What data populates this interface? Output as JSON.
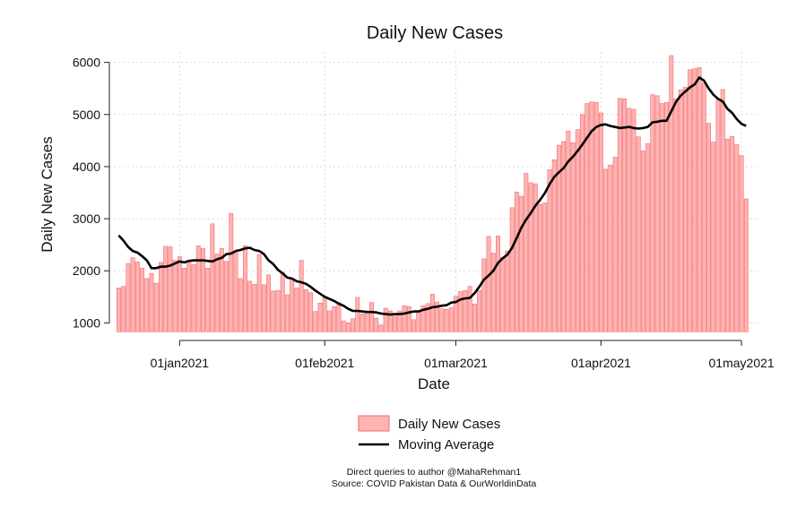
{
  "colors": {
    "bar_fill": "#ffb3b3",
    "bar_stroke": "#f06b6b",
    "line": "#000000",
    "grid": "#d9d9d9"
  },
  "notes": {
    "line1": "Direct queries to author @MahaRehman1",
    "line2": "Source: COVID Pakistan Data & OurWorldinData"
  },
  "chart_data": {
    "type": "bar",
    "title": "Daily New Cases",
    "xlabel": "Date",
    "ylabel": "Daily New Cases",
    "ylim": [
      800,
      6200
    ],
    "yticks": [
      1000,
      2000,
      3000,
      4000,
      5000,
      6000
    ],
    "grid": true,
    "legend_position": "bottom",
    "x_start_date": "2020-12-19",
    "x_end_date": "2021-05-02",
    "x_range": [
      "2020-12-17",
      "2021-05-05"
    ],
    "xticks": [
      {
        "date": "2021-01-01",
        "label": "01jan2021"
      },
      {
        "date": "2021-02-01",
        "label": "01feb2021"
      },
      {
        "date": "2021-03-01",
        "label": "01mar2021"
      },
      {
        "date": "2021-04-01",
        "label": "01apr2021"
      },
      {
        "date": "2021-05-01",
        "label": "01may2021"
      }
    ],
    "series": [
      {
        "name": "Daily New Cases",
        "type": "bar",
        "values": [
          1670,
          1700,
          2140,
          2250,
          2170,
          2050,
          1850,
          1950,
          1760,
          2160,
          2470,
          2460,
          2200,
          2270,
          2050,
          2200,
          2120,
          2480,
          2430,
          2050,
          2900,
          2320,
          2430,
          2180,
          3100,
          2350,
          1850,
          2480,
          1800,
          1740,
          2310,
          1730,
          1920,
          1610,
          1620,
          1970,
          1540,
          1840,
          1670,
          2200,
          1640,
          1580,
          1220,
          1380,
          1480,
          1230,
          1310,
          1390,
          1040,
          1000,
          1080,
          1490,
          1170,
          1200,
          1390,
          1090,
          960,
          1280,
          1230,
          1170,
          1230,
          1330,
          1310,
          1060,
          1230,
          1330,
          1370,
          1550,
          1400,
          1270,
          1260,
          1290,
          1510,
          1600,
          1620,
          1700,
          1360,
          1620,
          2230,
          2660,
          2340,
          2670,
          2260,
          2380,
          3210,
          3510,
          3430,
          3870,
          3690,
          3670,
          3270,
          3300,
          3940,
          4130,
          4410,
          4480,
          4680,
          4460,
          4710,
          5000,
          5210,
          5240,
          5230,
          5030,
          3950,
          4030,
          4180,
          5310,
          5300,
          5120,
          5100,
          4570,
          4300,
          4440,
          5380,
          5360,
          5210,
          5230,
          6130,
          5300,
          5470,
          5520,
          5860,
          5880,
          5900,
          5600,
          4830,
          4470,
          5290,
          5480,
          4530,
          4580,
          4420,
          4210,
          3380
        ]
      },
      {
        "name": "Moving Average",
        "type": "line",
        "values": [
          2680,
          2580,
          2460,
          2380,
          2350,
          2280,
          2200,
          2050,
          2050,
          2080,
          2080,
          2100,
          2140,
          2180,
          2160,
          2190,
          2200,
          2200,
          2200,
          2190,
          2180,
          2220,
          2250,
          2320,
          2330,
          2380,
          2400,
          2430,
          2440,
          2400,
          2380,
          2320,
          2200,
          2130,
          2020,
          1950,
          1870,
          1850,
          1800,
          1780,
          1750,
          1690,
          1620,
          1560,
          1500,
          1460,
          1420,
          1370,
          1330,
          1270,
          1230,
          1230,
          1220,
          1210,
          1210,
          1200,
          1180,
          1170,
          1160,
          1170,
          1170,
          1180,
          1200,
          1220,
          1220,
          1250,
          1270,
          1300,
          1310,
          1330,
          1340,
          1390,
          1400,
          1450,
          1470,
          1480,
          1570,
          1690,
          1830,
          1910,
          2000,
          2150,
          2240,
          2310,
          2440,
          2630,
          2830,
          2980,
          3110,
          3250,
          3360,
          3490,
          3660,
          3800,
          3890,
          3970,
          4100,
          4190,
          4300,
          4420,
          4550,
          4680,
          4760,
          4800,
          4810,
          4780,
          4760,
          4740,
          4750,
          4760,
          4740,
          4730,
          4740,
          4760,
          4850,
          4860,
          4880,
          4880,
          5060,
          5240,
          5360,
          5440,
          5520,
          5580,
          5710,
          5650,
          5500,
          5380,
          5300,
          5250,
          5110,
          5030,
          4910,
          4820,
          4780
        ]
      }
    ]
  }
}
